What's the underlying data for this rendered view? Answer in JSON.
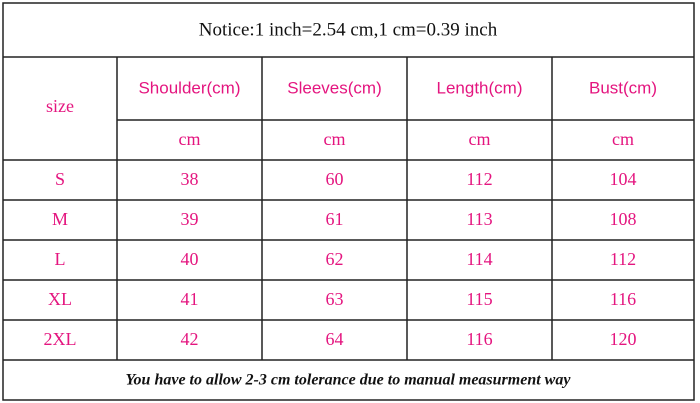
{
  "notice": "Notice:1 inch=2.54 cm,1 cm=0.39 inch",
  "table": {
    "size_header": "size",
    "headers": [
      "Shoulder(cm)",
      "Sleeves(cm)",
      "Length(cm)",
      "Bust(cm)"
    ],
    "units": [
      "cm",
      "cm",
      "cm",
      "cm"
    ],
    "rows": [
      [
        "S",
        "38",
        "60",
        "112",
        "104"
      ],
      [
        "M",
        "39",
        "61",
        "113",
        "108"
      ],
      [
        "L",
        "40",
        "62",
        "114",
        "112"
      ],
      [
        "XL",
        "41",
        "63",
        "115",
        "116"
      ],
      [
        "2XL",
        "42",
        "64",
        "116",
        "120"
      ]
    ]
  },
  "footer": "You have to allow 2-3 cm tolerance due to manual measurment way"
}
